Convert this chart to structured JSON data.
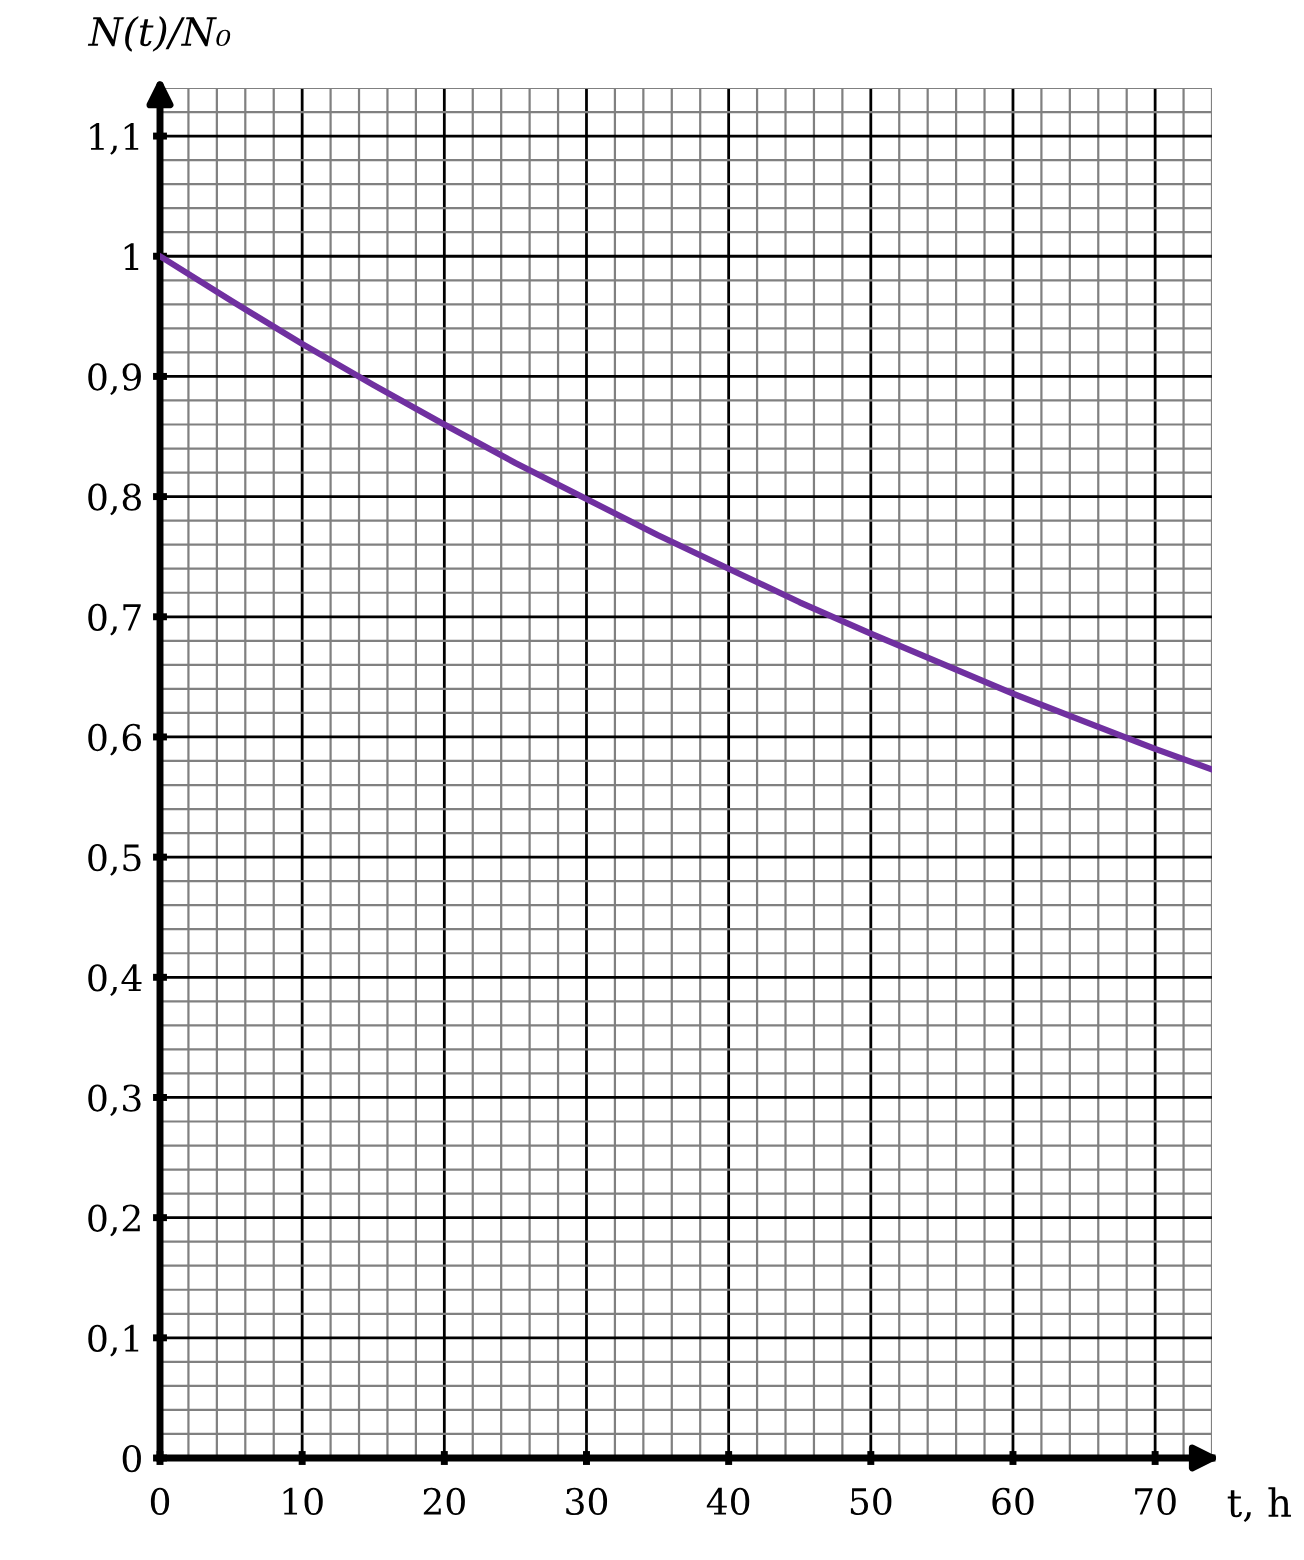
{
  "chart_data": {
    "type": "line",
    "xlabel": "t, h",
    "ylabel": "N(t)/N₀",
    "x": [
      0,
      5,
      10,
      15,
      20,
      25,
      30,
      35,
      40,
      45,
      50,
      55,
      60,
      65,
      70,
      74
    ],
    "series": [
      {
        "color": "#7030a0",
        "values": [
          1,
          0.963,
          0.927,
          0.893,
          0.86,
          0.828,
          0.798,
          0.768,
          0.74,
          0.712,
          0.686,
          0.661,
          0.636,
          0.613,
          0.59,
          0.573
        ]
      }
    ],
    "xlim": [
      0,
      74
    ],
    "ylim": [
      0,
      1.14
    ],
    "xticks": [
      0,
      10,
      20,
      30,
      40,
      50,
      60,
      70
    ],
    "yticks": [
      0,
      {
        "value": 0.1,
        "label": "0,1"
      },
      {
        "value": 0.2,
        "label": "0,2"
      },
      {
        "value": 0.3,
        "label": "0,3"
      },
      {
        "value": 0.4,
        "label": "0,4"
      },
      {
        "value": 0.5,
        "label": "0,5"
      },
      {
        "value": 0.6,
        "label": "0,6"
      },
      {
        "value": 0.7,
        "label": "0,7"
      },
      {
        "value": 0.8,
        "label": "0,8"
      },
      {
        "value": 0.9,
        "label": "0,9"
      },
      1,
      {
        "value": 1.1,
        "label": "1,1"
      }
    ],
    "grid": true,
    "marker": "none",
    "line_style": "solid",
    "legend": false
  }
}
